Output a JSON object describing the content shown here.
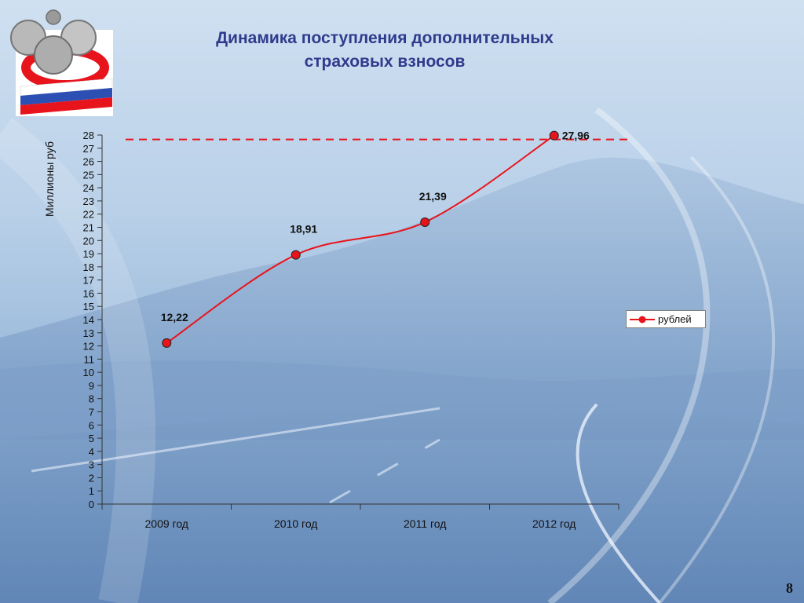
{
  "slide": {
    "title_line1": "Динамика поступления дополнительных",
    "title_line2": "страховых взносов",
    "page_number": "8"
  },
  "colors": {
    "title": "#2f3b8c",
    "series": "#e8141c",
    "reference_line": "#e8141c",
    "axis": "#333333"
  },
  "logo": {
    "icons": [
      "coin-icon",
      "pfr-emblem-icon",
      "russian-flag-icon"
    ]
  },
  "chart_data": {
    "type": "line",
    "categories": [
      "2009 год",
      "2010 год",
      "2011 год",
      "2012 год"
    ],
    "series": [
      {
        "name": "рублей",
        "values": [
          12.22,
          18.91,
          21.39,
          27.96
        ],
        "color": "#e8141c"
      }
    ],
    "data_labels": [
      "12,22",
      "18,91",
      "21,39",
      "27,96"
    ],
    "ylabel": "Миллионы руб",
    "xlabel": "",
    "ylim": [
      0,
      28
    ],
    "ytick_step": 1,
    "reference_line": {
      "y": 27.96,
      "style": "dashed",
      "color": "#e8141c"
    },
    "legend_position": "right",
    "grid": false
  }
}
